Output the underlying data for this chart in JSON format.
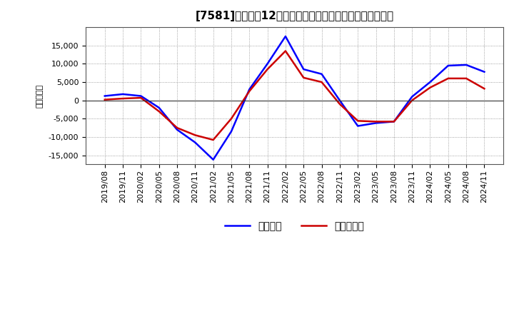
{
  "title_prefix": "[7581]",
  "title_main": "　利益だ12か月移動合計の対前年同期増減額の推移",
  "ylabel": "（百万円）",
  "legend_blue": "経常利益",
  "legend_red": "当期純利益",
  "color_blue": "#0000FF",
  "color_red": "#CC0000",
  "background_color": "#FFFFFF",
  "ylim": [
    -17500,
    20000
  ],
  "yticks": [
    -15000,
    -10000,
    -5000,
    0,
    5000,
    10000,
    15000
  ],
  "dates": [
    "2019/08",
    "2019/11",
    "2020/02",
    "2020/05",
    "2020/08",
    "2020/11",
    "2021/02",
    "2021/05",
    "2021/08",
    "2021/11",
    "2022/02",
    "2022/05",
    "2022/08",
    "2022/11",
    "2023/02",
    "2023/05",
    "2023/08",
    "2023/11",
    "2024/02",
    "2024/05",
    "2024/08",
    "2024/11"
  ],
  "blue_values": [
    1200,
    1700,
    1200,
    -2000,
    -8000,
    -11500,
    -16200,
    -8500,
    3000,
    10000,
    17500,
    8500,
    7200,
    0,
    -7000,
    -6200,
    -5800,
    1000,
    5000,
    9500,
    9700,
    7800
  ],
  "red_values": [
    200,
    500,
    700,
    -3000,
    -7500,
    -9500,
    -10800,
    -5000,
    2500,
    8500,
    13500,
    6200,
    5000,
    -1000,
    -5600,
    -5800,
    -5800,
    0,
    3500,
    6000,
    6000,
    3200
  ],
  "linewidth": 1.8,
  "title_fontsize": 11,
  "tick_fontsize": 8,
  "ylabel_fontsize": 8,
  "legend_fontsize": 10
}
